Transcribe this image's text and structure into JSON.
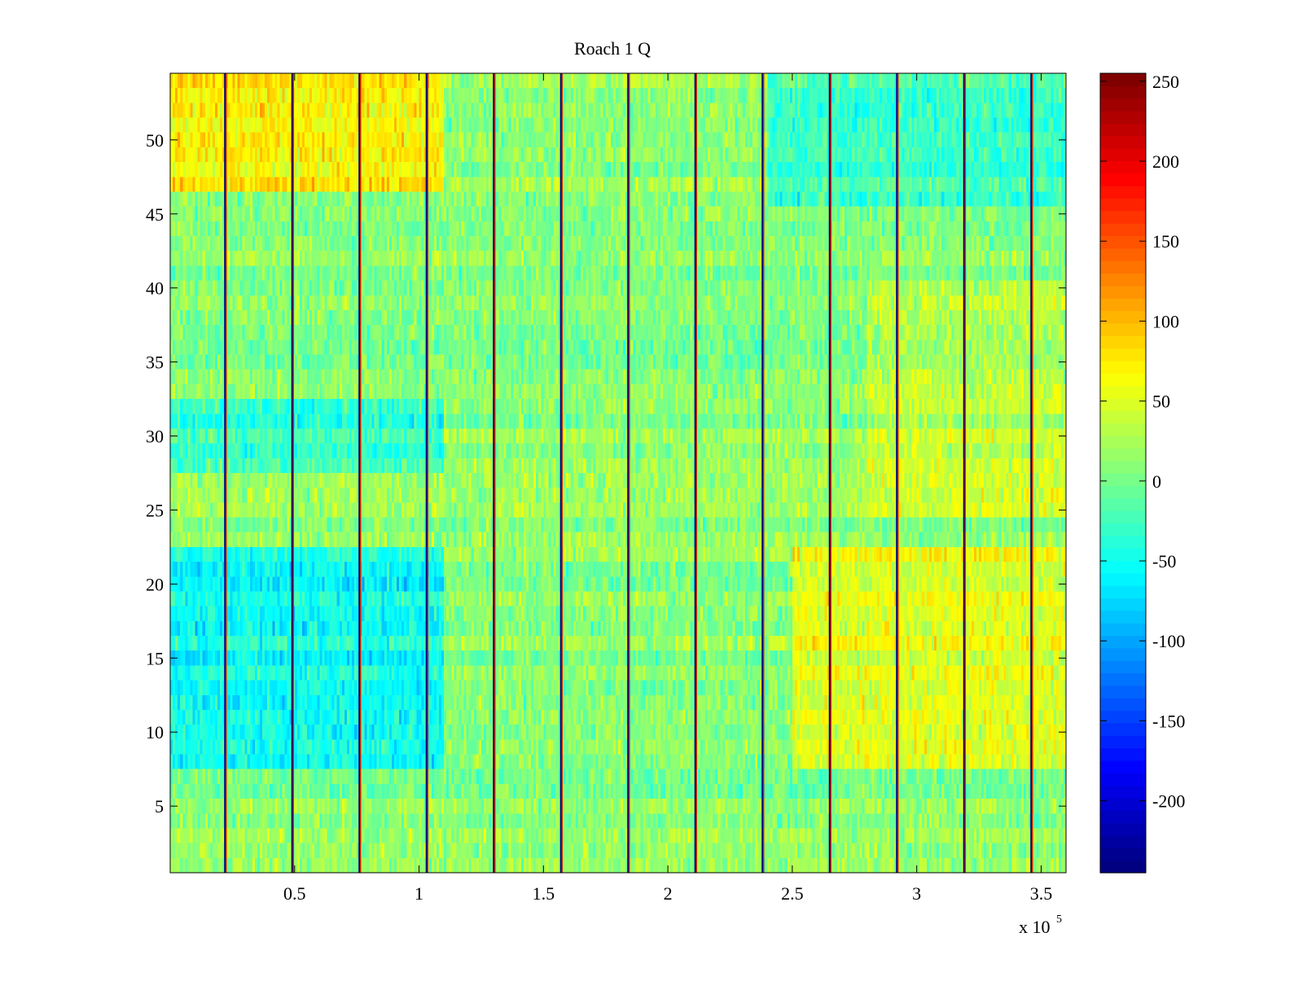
{
  "chart_data": {
    "type": "heatmap",
    "title": "Roach 1 Q",
    "xlabel": "",
    "ylabel": "",
    "x_multiplier_label": "x 10",
    "x_multiplier_exponent": "5",
    "xlim": [
      0,
      3.6
    ],
    "ylim": [
      0.5,
      54.5
    ],
    "x_ticks": [
      0.5,
      1,
      1.5,
      2,
      2.5,
      3,
      3.5
    ],
    "x_tick_labels": [
      "0.5",
      "1",
      "1.5",
      "2",
      "2.5",
      "3",
      "3.5"
    ],
    "y_ticks": [
      5,
      10,
      15,
      20,
      25,
      30,
      35,
      40,
      45,
      50
    ],
    "y_tick_labels": [
      "5",
      "10",
      "15",
      "20",
      "25",
      "30",
      "35",
      "40",
      "45",
      "50"
    ],
    "rows": 54,
    "colormap": "jet",
    "clim": [
      -245,
      255
    ],
    "colorbar_ticks": [
      250,
      200,
      150,
      100,
      50,
      0,
      -50,
      -100,
      -150,
      -200
    ],
    "colorbar_tick_labels": [
      "250",
      "200",
      "150",
      "100",
      "50",
      "0",
      "-50",
      "-100",
      "-150",
      "-200"
    ],
    "spike_positions": [
      0.22,
      0.49,
      0.76,
      1.03,
      1.3,
      1.57,
      1.84,
      2.11,
      2.38,
      2.65,
      2.92,
      3.19,
      3.46
    ],
    "row_pattern_note": "approximate mean value per row region, values in data units",
    "region_means": [
      {
        "x_range": [
          0,
          1.1
        ],
        "y_range": [
          47,
          54
        ],
        "mean": 60
      },
      {
        "x_range": [
          2.4,
          3.6
        ],
        "y_range": [
          46,
          54
        ],
        "mean": -40
      },
      {
        "x_range": [
          0,
          1.1
        ],
        "y_range": [
          8,
          22
        ],
        "mean": -60
      },
      {
        "x_range": [
          2.5,
          3.6
        ],
        "y_range": [
          8,
          22
        ],
        "mean": 45
      },
      {
        "x_range": [
          2.8,
          3.6
        ],
        "y_range": [
          25,
          40
        ],
        "mean": 25
      },
      {
        "x_range": [
          0,
          1.1
        ],
        "y_range": [
          28,
          32
        ],
        "mean": -45
      }
    ]
  }
}
